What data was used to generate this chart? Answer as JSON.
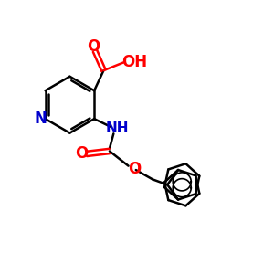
{
  "bg_color": "#ffffff",
  "bond_color": "#000000",
  "nitrogen_color": "#0000cc",
  "oxygen_color": "#ff0000",
  "bond_width": 1.8,
  "fig_size": [
    3.0,
    3.0
  ],
  "dpi": 100,
  "xlim": [
    0,
    10
  ],
  "ylim": [
    0,
    10
  ]
}
